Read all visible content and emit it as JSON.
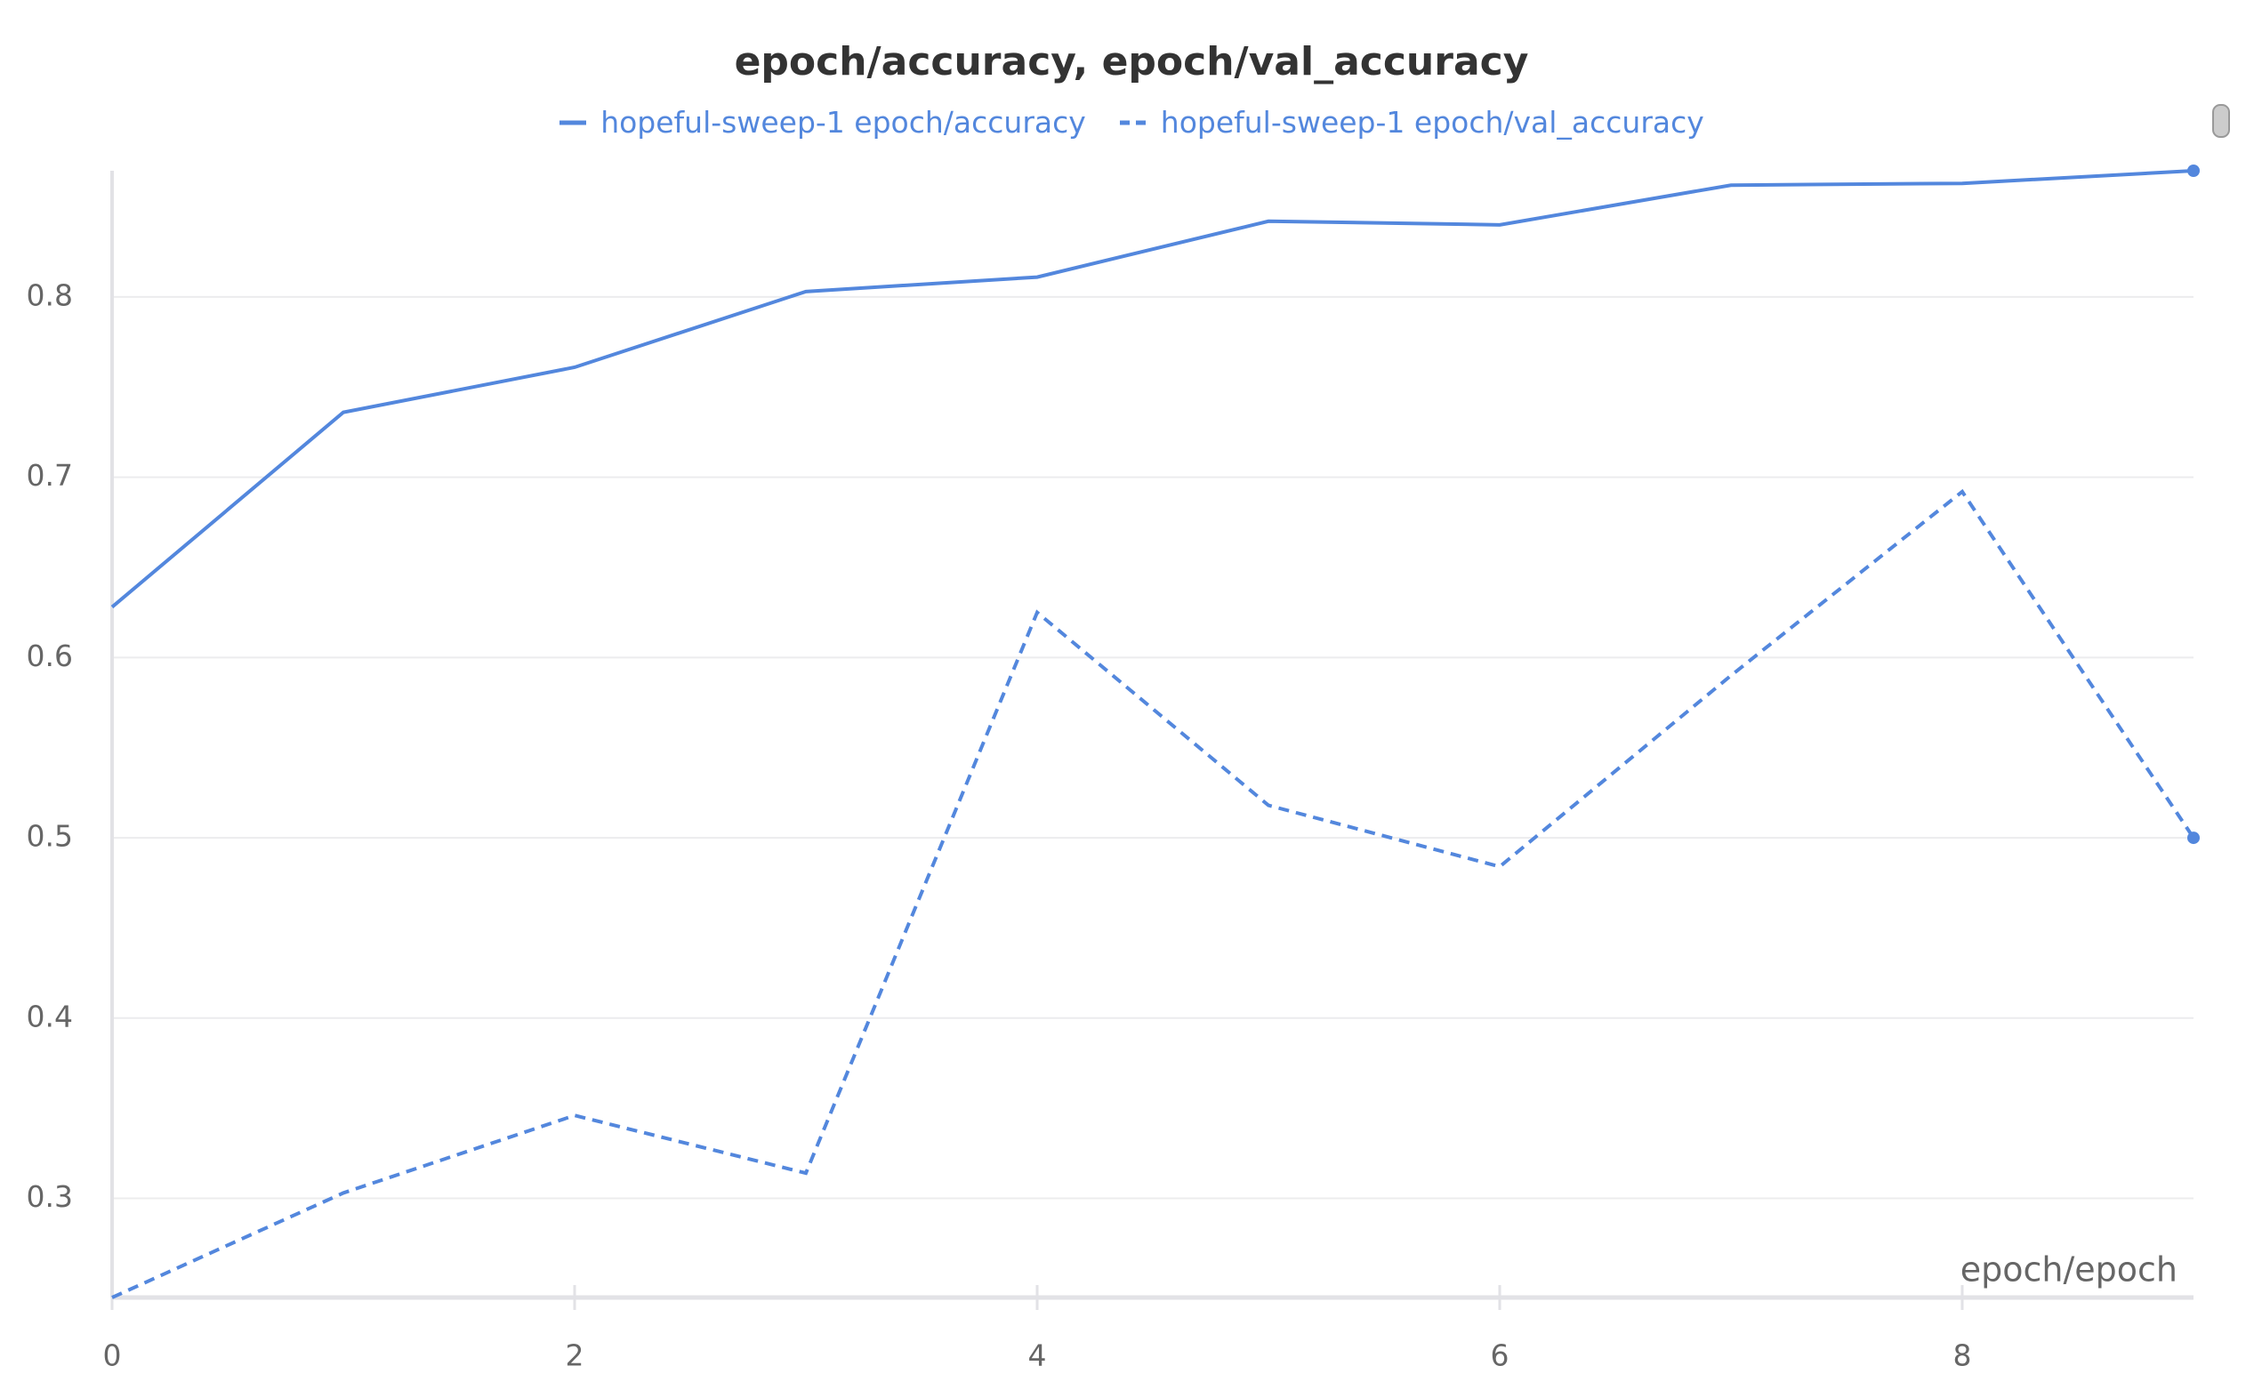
{
  "chart_data": {
    "type": "line",
    "title": "epoch/accuracy, epoch/val_accuracy",
    "x_label": "epoch/epoch",
    "x": [
      0,
      1,
      2,
      3,
      4,
      5,
      6,
      7,
      8,
      9
    ],
    "series": [
      {
        "name": "hopeful-sweep-1 epoch/accuracy",
        "color": "#5387dd",
        "dash": "solid",
        "values": [
          0.628,
          0.736,
          0.761,
          0.803,
          0.811,
          0.842,
          0.84,
          0.862,
          0.863,
          0.87
        ]
      },
      {
        "name": "hopeful-sweep-1 epoch/val_accuracy",
        "color": "#5387dd",
        "dash": "dashed",
        "values": [
          0.245,
          0.303,
          0.346,
          0.314,
          0.625,
          0.518,
          0.484,
          0.59,
          0.692,
          0.5
        ]
      }
    ],
    "xlim": [
      0,
      9
    ],
    "xticks": [
      0,
      2,
      4,
      6,
      8
    ],
    "ylim": [
      0.245,
      0.87
    ],
    "yticks": [
      0.3,
      0.4,
      0.5,
      0.6,
      0.7,
      0.8
    ],
    "grid": true
  }
}
